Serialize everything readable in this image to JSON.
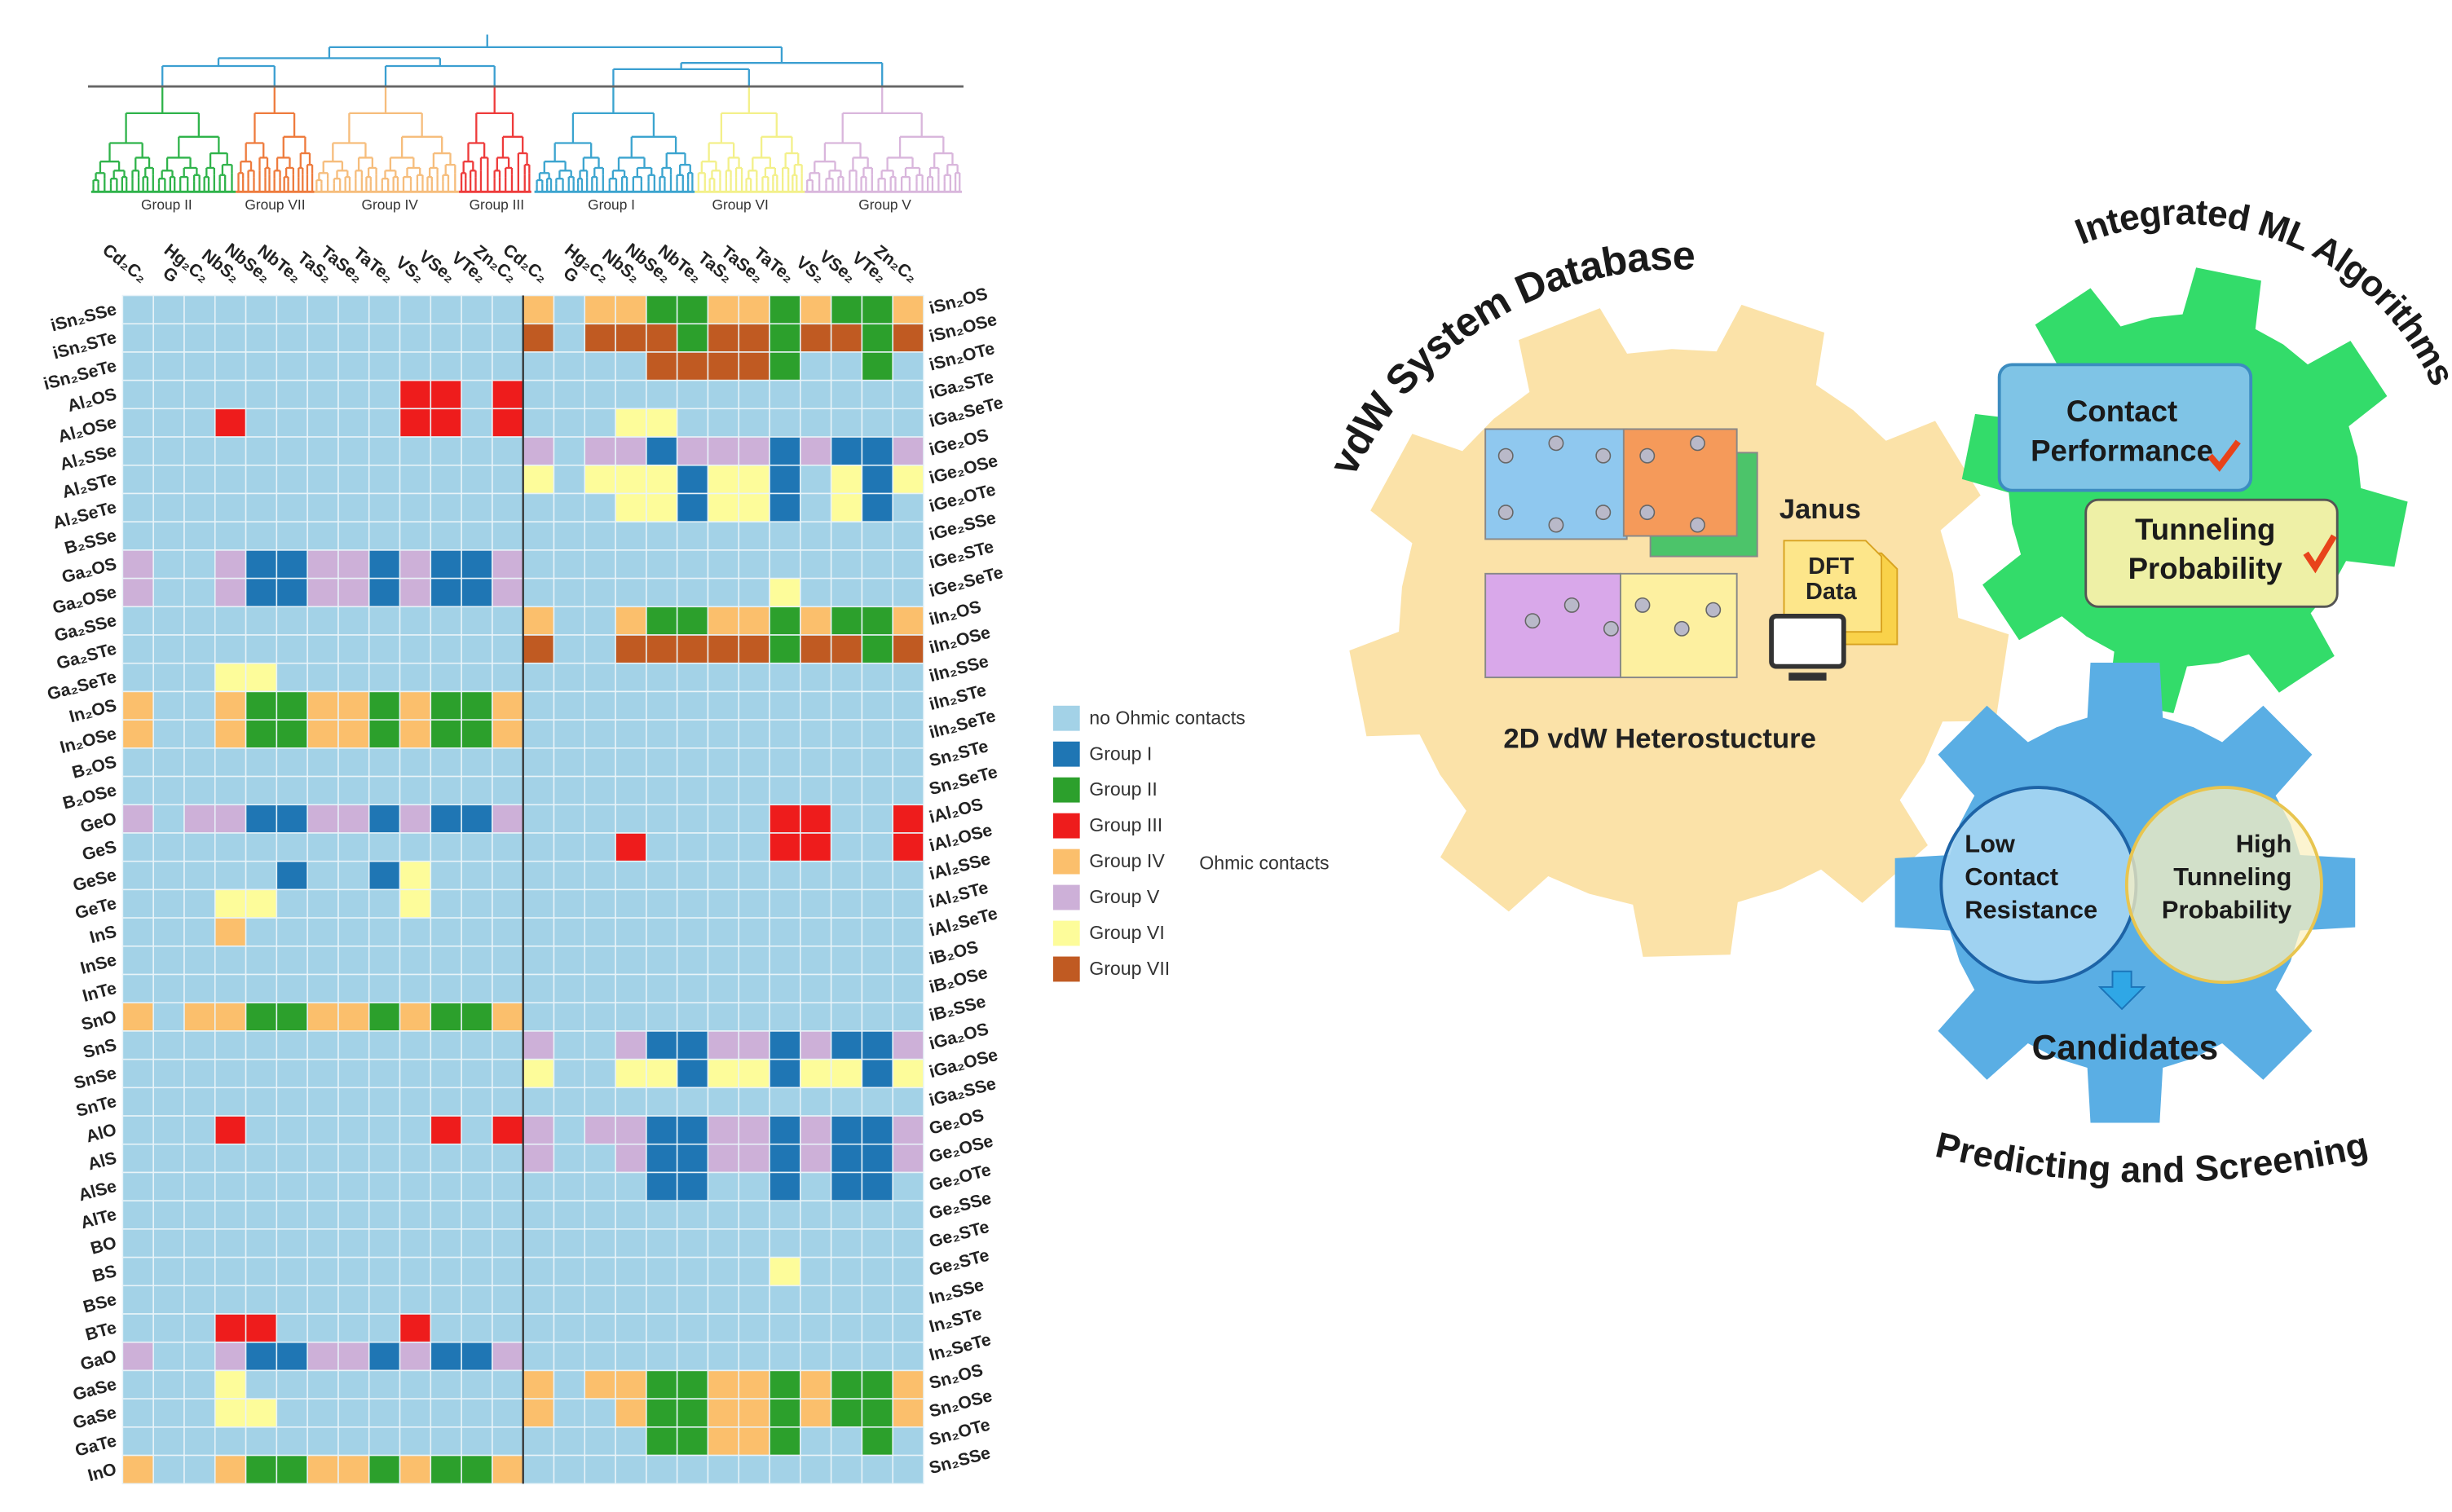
{
  "chart_data": {
    "type": "heatmap",
    "columns": [
      "Cd₂C₂",
      "G",
      "Hg₂C₂",
      "NbS₂",
      "NbSe₂",
      "NbTe₂",
      "TaS₂",
      "TaSe₂",
      "TaTe₂",
      "VS₂",
      "VSe₂",
      "VTe₂",
      "Zn₂C₂",
      "Cd₂C₂",
      "G",
      "Hg₂C₂",
      "NbS₂",
      "NbSe₂",
      "NbTe₂",
      "TaS₂",
      "TaSe₂",
      "TaTe₂",
      "VS₂",
      "VSe₂",
      "VTe₂",
      "Zn₂C₂"
    ],
    "rows_left": [
      "iSn₂SSe",
      "iSn₂STe",
      "iSn₂SeTe",
      "Al₂OS",
      "Al₂OSe",
      "Al₂SSe",
      "Al₂STe",
      "Al₂SeTe",
      "B₂SSe",
      "Ga₂OS",
      "Ga₂OSe",
      "Ga₂SSe",
      "Ga₂STe",
      "Ga₂SeTe",
      "In₂OS",
      "In₂OSe",
      "B₂OS",
      "B₂OSe",
      "GeO",
      "GeS",
      "GeSe",
      "GeTe",
      "InS",
      "InSe",
      "InTe",
      "SnO",
      "SnS",
      "SnSe",
      "SnTe",
      "AlO",
      "AlS",
      "AlSe",
      "AlTe",
      "BO",
      "BS",
      "BSe",
      "BTe",
      "GaO",
      "GaSe",
      "GaSe",
      "GaTe",
      "InO"
    ],
    "rows_right": [
      "iSn₂OS",
      "iSn₂OSe",
      "iSn₂OTe",
      "iGa₂STe",
      "iGa₂SeTe",
      "iGe₂OS",
      "iGe₂OSe",
      "iGe₂OTe",
      "iGe₂SSe",
      "iGe₂STe",
      "iGe₂SeTe",
      "iIn₂OS",
      "iIn₂OSe",
      "iIn₂SSe",
      "iIn₂STe",
      "iIn₂SeTe",
      "Sn₂STe",
      "Sn₂SeTe",
      "iAl₂OS",
      "iAl₂OSe",
      "iAl₂SSe",
      "iAl₂STe",
      "iAl₂SeTe",
      "iB₂OS",
      "iB₂OSe",
      "iB₂SSe",
      "iGa₂OS",
      "iGa₂OSe",
      "iGa₂SSe",
      "Ge₂OS",
      "Ge₂OSe",
      "Ge₂OTe",
      "Ge₂SSe",
      "Ge₂STe",
      "Ge₂STe",
      "In₂SSe",
      "In₂STe",
      "In₂SeTe",
      "Sn₂OS",
      "Sn₂OSe",
      "Sn₂OTe",
      "Sn₂SSe"
    ],
    "cluster_labels": [
      "Group II",
      "Group VII",
      "Group IV",
      "Group III",
      "Group I",
      "Group VI",
      "Group V"
    ],
    "legend": [
      {
        "name": "no Ohmic contacts",
        "color": "#a3d2e7"
      },
      {
        "name": "Group I",
        "color": "#1f76b4"
      },
      {
        "name": "Group II",
        "color": "#2ca02c"
      },
      {
        "name": "Group III",
        "color": "#ee1c1c"
      },
      {
        "name": "Group IV",
        "color": "#fbbf6c"
      },
      {
        "name": "Group V",
        "color": "#cdb0d8"
      },
      {
        "name": "Group VI",
        "color": "#fdfc9a"
      },
      {
        "name": "Group VII",
        "color": "#c05a22"
      }
    ],
    "legend_note": "Ohmic contacts",
    "values": [
      [
        0,
        0,
        0,
        0,
        0,
        0,
        0,
        0,
        0,
        0,
        0,
        0,
        0,
        4,
        0,
        4,
        4,
        2,
        2,
        4,
        4,
        2,
        4,
        2,
        2,
        4
      ],
      [
        0,
        0,
        0,
        0,
        0,
        0,
        0,
        0,
        0,
        0,
        0,
        0,
        0,
        7,
        0,
        7,
        7,
        7,
        2,
        7,
        7,
        2,
        7,
        7,
        2,
        7
      ],
      [
        0,
        0,
        0,
        0,
        0,
        0,
        0,
        0,
        0,
        0,
        0,
        0,
        0,
        0,
        0,
        0,
        0,
        7,
        7,
        7,
        7,
        2,
        0,
        0,
        2,
        0
      ],
      [
        0,
        0,
        0,
        0,
        0,
        0,
        0,
        0,
        0,
        3,
        3,
        0,
        3,
        0,
        0,
        0,
        0,
        0,
        0,
        0,
        0,
        0,
        0,
        0,
        0,
        0
      ],
      [
        0,
        0,
        0,
        3,
        0,
        0,
        0,
        0,
        0,
        3,
        3,
        0,
        3,
        0,
        0,
        0,
        6,
        6,
        0,
        0,
        0,
        0,
        0,
        0,
        0,
        0
      ],
      [
        0,
        0,
        0,
        0,
        0,
        0,
        0,
        0,
        0,
        0,
        0,
        0,
        0,
        5,
        0,
        5,
        5,
        1,
        5,
        5,
        5,
        1,
        5,
        1,
        1,
        5
      ],
      [
        0,
        0,
        0,
        0,
        0,
        0,
        0,
        0,
        0,
        0,
        0,
        0,
        0,
        6,
        0,
        6,
        6,
        6,
        1,
        6,
        6,
        1,
        0,
        6,
        1,
        6
      ],
      [
        0,
        0,
        0,
        0,
        0,
        0,
        0,
        0,
        0,
        0,
        0,
        0,
        0,
        0,
        0,
        0,
        6,
        6,
        1,
        6,
        6,
        1,
        0,
        6,
        1,
        0
      ],
      [
        0,
        0,
        0,
        0,
        0,
        0,
        0,
        0,
        0,
        0,
        0,
        0,
        0,
        0,
        0,
        0,
        0,
        0,
        0,
        0,
        0,
        0,
        0,
        0,
        0,
        0
      ],
      [
        5,
        0,
        0,
        5,
        1,
        1,
        5,
        5,
        1,
        5,
        1,
        1,
        5,
        0,
        0,
        0,
        0,
        0,
        0,
        0,
        0,
        0,
        0,
        0,
        0,
        0
      ],
      [
        5,
        0,
        0,
        5,
        1,
        1,
        5,
        5,
        1,
        5,
        1,
        1,
        5,
        0,
        0,
        0,
        0,
        0,
        0,
        0,
        0,
        6,
        0,
        0,
        0,
        0
      ],
      [
        0,
        0,
        0,
        0,
        0,
        0,
        0,
        0,
        0,
        0,
        0,
        0,
        0,
        4,
        0,
        0,
        4,
        2,
        2,
        4,
        4,
        2,
        4,
        2,
        2,
        4
      ],
      [
        0,
        0,
        0,
        0,
        0,
        0,
        0,
        0,
        0,
        0,
        0,
        0,
        0,
        7,
        0,
        0,
        7,
        7,
        7,
        7,
        7,
        2,
        7,
        7,
        2,
        7
      ],
      [
        0,
        0,
        0,
        6,
        6,
        0,
        0,
        0,
        0,
        0,
        0,
        0,
        0,
        0,
        0,
        0,
        0,
        0,
        0,
        0,
        0,
        0,
        0,
        0,
        0,
        0
      ],
      [
        4,
        0,
        0,
        4,
        2,
        2,
        4,
        4,
        2,
        4,
        2,
        2,
        4,
        0,
        0,
        0,
        0,
        0,
        0,
        0,
        0,
        0,
        0,
        0,
        0,
        0
      ],
      [
        4,
        0,
        0,
        4,
        2,
        2,
        4,
        4,
        2,
        4,
        2,
        2,
        4,
        0,
        0,
        0,
        0,
        0,
        0,
        0,
        0,
        0,
        0,
        0,
        0,
        0
      ],
      [
        0,
        0,
        0,
        0,
        0,
        0,
        0,
        0,
        0,
        0,
        0,
        0,
        0,
        0,
        0,
        0,
        0,
        0,
        0,
        0,
        0,
        0,
        0,
        0,
        0,
        0
      ],
      [
        0,
        0,
        0,
        0,
        0,
        0,
        0,
        0,
        0,
        0,
        0,
        0,
        0,
        0,
        0,
        0,
        0,
        0,
        0,
        0,
        0,
        0,
        0,
        0,
        0,
        0
      ],
      [
        5,
        0,
        5,
        5,
        1,
        1,
        5,
        5,
        1,
        5,
        1,
        1,
        5,
        0,
        0,
        0,
        0,
        0,
        0,
        0,
        0,
        3,
        3,
        0,
        0,
        3
      ],
      [
        0,
        0,
        0,
        0,
        0,
        0,
        0,
        0,
        0,
        0,
        0,
        0,
        0,
        0,
        0,
        0,
        3,
        0,
        0,
        0,
        0,
        3,
        3,
        0,
        0,
        3
      ],
      [
        0,
        0,
        0,
        0,
        0,
        1,
        0,
        0,
        1,
        6,
        0,
        0,
        0,
        0,
        0,
        0,
        0,
        0,
        0,
        0,
        0,
        0,
        0,
        0,
        0,
        0
      ],
      [
        0,
        0,
        0,
        6,
        6,
        0,
        0,
        0,
        0,
        6,
        0,
        0,
        0,
        0,
        0,
        0,
        0,
        0,
        0,
        0,
        0,
        0,
        0,
        0,
        0,
        0
      ],
      [
        0,
        0,
        0,
        4,
        0,
        0,
        0,
        0,
        0,
        0,
        0,
        0,
        0,
        0,
        0,
        0,
        0,
        0,
        0,
        0,
        0,
        0,
        0,
        0,
        0,
        0
      ],
      [
        0,
        0,
        0,
        0,
        0,
        0,
        0,
        0,
        0,
        0,
        0,
        0,
        0,
        0,
        0,
        0,
        0,
        0,
        0,
        0,
        0,
        0,
        0,
        0,
        0,
        0
      ],
      [
        0,
        0,
        0,
        0,
        0,
        0,
        0,
        0,
        0,
        0,
        0,
        0,
        0,
        0,
        0,
        0,
        0,
        0,
        0,
        0,
        0,
        0,
        0,
        0,
        0,
        0
      ],
      [
        4,
        0,
        4,
        4,
        2,
        2,
        4,
        4,
        2,
        4,
        2,
        2,
        4,
        0,
        0,
        0,
        0,
        0,
        0,
        0,
        0,
        0,
        0,
        0,
        0,
        0
      ],
      [
        0,
        0,
        0,
        0,
        0,
        0,
        0,
        0,
        0,
        0,
        0,
        0,
        0,
        5,
        0,
        0,
        5,
        1,
        1,
        5,
        5,
        1,
        5,
        1,
        1,
        5
      ],
      [
        0,
        0,
        0,
        0,
        0,
        0,
        0,
        0,
        0,
        0,
        0,
        0,
        0,
        6,
        0,
        0,
        6,
        6,
        1,
        6,
        6,
        1,
        6,
        6,
        1,
        6
      ],
      [
        0,
        0,
        0,
        0,
        0,
        0,
        0,
        0,
        0,
        0,
        0,
        0,
        0,
        0,
        0,
        0,
        0,
        0,
        0,
        0,
        0,
        0,
        0,
        0,
        0,
        0
      ],
      [
        0,
        0,
        0,
        3,
        0,
        0,
        0,
        0,
        0,
        0,
        3,
        0,
        3,
        5,
        0,
        5,
        5,
        1,
        1,
        5,
        5,
        1,
        5,
        1,
        1,
        5
      ],
      [
        0,
        0,
        0,
        0,
        0,
        0,
        0,
        0,
        0,
        0,
        0,
        0,
        0,
        5,
        0,
        0,
        5,
        1,
        1,
        5,
        5,
        1,
        5,
        1,
        1,
        5
      ],
      [
        0,
        0,
        0,
        0,
        0,
        0,
        0,
        0,
        0,
        0,
        0,
        0,
        0,
        0,
        0,
        0,
        0,
        1,
        1,
        0,
        0,
        1,
        0,
        1,
        1,
        0
      ],
      [
        0,
        0,
        0,
        0,
        0,
        0,
        0,
        0,
        0,
        0,
        0,
        0,
        0,
        0,
        0,
        0,
        0,
        0,
        0,
        0,
        0,
        0,
        0,
        0,
        0,
        0
      ],
      [
        0,
        0,
        0,
        0,
        0,
        0,
        0,
        0,
        0,
        0,
        0,
        0,
        0,
        0,
        0,
        0,
        0,
        0,
        0,
        0,
        0,
        0,
        0,
        0,
        0,
        0
      ],
      [
        0,
        0,
        0,
        0,
        0,
        0,
        0,
        0,
        0,
        0,
        0,
        0,
        0,
        0,
        0,
        0,
        0,
        0,
        0,
        0,
        0,
        6,
        0,
        0,
        0,
        0
      ],
      [
        0,
        0,
        0,
        0,
        0,
        0,
        0,
        0,
        0,
        0,
        0,
        0,
        0,
        0,
        0,
        0,
        0,
        0,
        0,
        0,
        0,
        0,
        0,
        0,
        0,
        0
      ],
      [
        0,
        0,
        0,
        3,
        3,
        0,
        0,
        0,
        0,
        3,
        0,
        0,
        0,
        0,
        0,
        0,
        0,
        0,
        0,
        0,
        0,
        0,
        0,
        0,
        0,
        0
      ],
      [
        5,
        0,
        0,
        5,
        1,
        1,
        5,
        5,
        1,
        5,
        1,
        1,
        5,
        0,
        0,
        0,
        0,
        0,
        0,
        0,
        0,
        0,
        0,
        0,
        0,
        0
      ],
      [
        0,
        0,
        0,
        6,
        0,
        0,
        0,
        0,
        0,
        0,
        0,
        0,
        0,
        4,
        0,
        4,
        4,
        2,
        2,
        4,
        4,
        2,
        4,
        2,
        2,
        4
      ],
      [
        0,
        0,
        0,
        6,
        6,
        0,
        0,
        0,
        0,
        0,
        0,
        0,
        0,
        4,
        0,
        0,
        4,
        2,
        2,
        4,
        4,
        2,
        4,
        2,
        2,
        4
      ],
      [
        0,
        0,
        0,
        0,
        0,
        0,
        0,
        0,
        0,
        0,
        0,
        0,
        0,
        0,
        0,
        0,
        0,
        2,
        2,
        4,
        4,
        2,
        0,
        0,
        2,
        0
      ],
      [
        4,
        0,
        0,
        4,
        2,
        2,
        4,
        4,
        2,
        4,
        2,
        2,
        4,
        0,
        0,
        0,
        0,
        0,
        0,
        0,
        0,
        0,
        0,
        0,
        0,
        0
      ]
    ]
  },
  "diagram": {
    "database_title": "vdW System Database",
    "ml_title": "Integrated ML Algorithms",
    "screening_title": "Predicting and Screening",
    "janus": "Janus",
    "dft_data": [
      "DFT",
      "Data"
    ],
    "heterostructure": "2D vdW Heterostucture",
    "contact_performance": [
      "Contact",
      "Performance"
    ],
    "tunneling_probability": [
      "Tunneling",
      "Probability"
    ],
    "low_contact_resistance": [
      "Low",
      "Contact",
      "Resistance"
    ],
    "high_tunneling_probability": [
      "High",
      "Tunneling",
      "Probability"
    ],
    "candidates": "Candidates"
  }
}
